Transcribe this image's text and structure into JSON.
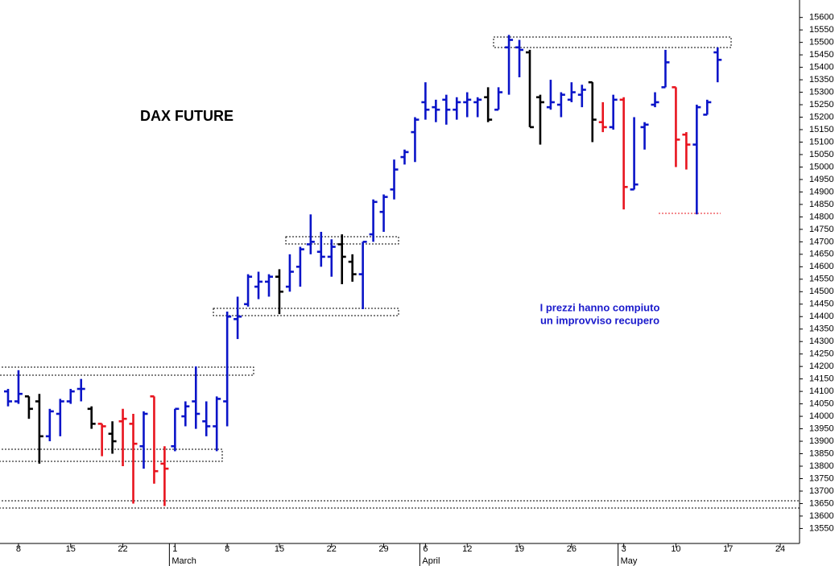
{
  "chart_data": {
    "type": "ohlc",
    "title": "DAX FUTURE",
    "annotation": [
      "I prezzi hanno compiuto",
      "un improvviso recupero"
    ],
    "categories": [
      null,
      "8",
      null,
      null,
      null,
      null,
      "15",
      null,
      null,
      null,
      null,
      "22",
      null,
      null,
      null,
      null,
      "1",
      null,
      null,
      null,
      null,
      "8",
      null,
      null,
      null,
      null,
      "15",
      null,
      null,
      null,
      null,
      "22",
      null,
      null,
      null,
      null,
      "29",
      null,
      null,
      null,
      "6",
      null,
      null,
      null,
      "12",
      null,
      null,
      null,
      null,
      "19",
      null,
      null,
      null,
      null,
      "26",
      null,
      null,
      null,
      null,
      "3",
      null,
      null,
      null,
      null,
      "10",
      null,
      null,
      null,
      null,
      "17",
      null,
      null,
      null,
      null,
      "24"
    ],
    "month_labels": [
      null,
      null,
      null,
      null,
      null,
      null,
      null,
      null,
      null,
      null,
      null,
      null,
      null,
      null,
      null,
      null,
      "March",
      null,
      null,
      null,
      null,
      null,
      null,
      null,
      null,
      null,
      null,
      null,
      null,
      null,
      null,
      null,
      null,
      null,
      null,
      null,
      null,
      null,
      null,
      null,
      "April",
      null,
      null,
      null,
      null,
      null,
      null,
      null,
      null,
      null,
      null,
      null,
      null,
      null,
      null,
      null,
      null,
      null,
      null,
      "May",
      null,
      null,
      null,
      null,
      null,
      null,
      null,
      null,
      null,
      null,
      null,
      null,
      null,
      null,
      null
    ],
    "open": [
      14100,
      14060,
      14080,
      14060,
      13920,
      14010,
      14060,
      14110,
      14030,
      13970,
      13930,
      13980,
      13970,
      13880,
      14080,
      13810,
      13880,
      14000,
      14060,
      13980,
      13960,
      14060,
      14390,
      14450,
      14520,
      14540,
      14560,
      14520,
      14600,
      14690,
      14660,
      14640,
      14690,
      14620,
      14570,
      14730,
      14820,
      14910,
      15040,
      15140,
      15260,
      15240,
      15270,
      15230,
      15260,
      15260,
      15280,
      15230,
      15480,
      15480,
      15460,
      15280,
      15240,
      15250,
      15270,
      15290,
      15340,
      15180,
      15160,
      15270,
      14910,
      15160,
      15250,
      15320,
      15320,
      15130,
      15090,
      15210,
      15460,
      null,
      null,
      null,
      null,
      null,
      null
    ],
    "high": [
      14110,
      14185,
      14080,
      14090,
      14030,
      14070,
      14110,
      14150,
      14040,
      13970,
      13980,
      14030,
      14010,
      14020,
      14080,
      13880,
      14030,
      14060,
      14200,
      14060,
      14080,
      14420,
      14480,
      14570,
      14580,
      14570,
      14590,
      14650,
      14680,
      14810,
      14740,
      14710,
      14730,
      14650,
      14700,
      14870,
      14890,
      15030,
      15070,
      15200,
      15340,
      15270,
      15290,
      15280,
      15300,
      15280,
      15320,
      15320,
      15530,
      15510,
      15470,
      15290,
      15350,
      15300,
      15340,
      15330,
      15340,
      15260,
      15290,
      15280,
      15200,
      15180,
      15300,
      15470,
      15320,
      15140,
      15250,
      15270,
      15480,
      null,
      null,
      null,
      null,
      null,
      null
    ],
    "low": [
      14040,
      14050,
      13990,
      13810,
      13900,
      13920,
      14050,
      14060,
      13950,
      13840,
      13850,
      13800,
      13650,
      13790,
      13730,
      13640,
      13860,
      13960,
      13950,
      13920,
      13860,
      13960,
      14310,
      14440,
      14470,
      14480,
      14410,
      14500,
      14520,
      14650,
      14600,
      14560,
      14530,
      14540,
      14430,
      14700,
      14740,
      14870,
      15010,
      15020,
      15190,
      15180,
      15170,
      15190,
      15200,
      15200,
      15180,
      15230,
      15290,
      15360,
      15160,
      15090,
      15230,
      15200,
      15260,
      15240,
      15100,
      15140,
      15150,
      14830,
      14910,
      15070,
      15240,
      15320,
      15000,
      14990,
      14810,
      15210,
      15340,
      null,
      null,
      null,
      null,
      null,
      null
    ],
    "close": [
      14060,
      14090,
      14030,
      13920,
      14020,
      14060,
      14100,
      14110,
      13970,
      13960,
      13900,
      13990,
      13890,
      14010,
      13780,
      13790,
      14030,
      14040,
      14010,
      13960,
      14070,
      14400,
      14400,
      14560,
      14540,
      14560,
      14500,
      14580,
      14670,
      14700,
      14640,
      14680,
      14640,
      14570,
      14700,
      14860,
      14880,
      14990,
      15060,
      15190,
      15230,
      15230,
      15230,
      15260,
      15270,
      15270,
      15190,
      15300,
      15510,
      15470,
      15160,
      15260,
      15260,
      15290,
      15300,
      15310,
      15190,
      15160,
      15270,
      14920,
      14930,
      15170,
      15260,
      15420,
      15110,
      15090,
      15240,
      15260,
      15430,
      null,
      null,
      null,
      null,
      null,
      null
    ],
    "colors": [
      "#0a14c8",
      "#0a14c8",
      "#000000",
      "#000000",
      "#0a14c8",
      "#0a14c8",
      "#0a14c8",
      "#0a14c8",
      "#000000",
      "#e8141e",
      "#000000",
      "#e8141e",
      "#e8141e",
      "#0a14c8",
      "#e8141e",
      "#e8141e",
      "#0a14c8",
      "#0a14c8",
      "#0a14c8",
      "#0a14c8",
      "#0a14c8",
      "#0a14c8",
      "#0a14c8",
      "#0a14c8",
      "#0a14c8",
      "#0a14c8",
      "#000000",
      "#0a14c8",
      "#0a14c8",
      "#0a14c8",
      "#0a14c8",
      "#0a14c8",
      "#000000",
      "#000000",
      "#0a14c8",
      "#0a14c8",
      "#0a14c8",
      "#0a14c8",
      "#0a14c8",
      "#0a14c8",
      "#0a14c8",
      "#0a14c8",
      "#0a14c8",
      "#0a14c8",
      "#0a14c8",
      "#0a14c8",
      "#000000",
      "#0a14c8",
      "#0a14c8",
      "#0a14c8",
      "#000000",
      "#000000",
      "#0a14c8",
      "#0a14c8",
      "#0a14c8",
      "#0a14c8",
      "#000000",
      "#e8141e",
      "#0a14c8",
      "#e8141e",
      "#0a14c8",
      "#0a14c8",
      "#0a14c8",
      "#0a14c8",
      "#e8141e",
      "#e8141e",
      "#0a14c8",
      "#0a14c8",
      "#0a14c8",
      null,
      null,
      null,
      null,
      null,
      null
    ],
    "ylim": [
      13490,
      15670
    ],
    "yticks": [
      13550,
      13600,
      13650,
      13700,
      13750,
      13800,
      13850,
      13900,
      13950,
      14000,
      14050,
      14100,
      14150,
      14200,
      14250,
      14300,
      14350,
      14400,
      14450,
      14500,
      14550,
      14600,
      14650,
      14700,
      14750,
      14800,
      14850,
      14900,
      14950,
      15000,
      15050,
      15100,
      15150,
      15200,
      15250,
      15300,
      15350,
      15400,
      15450,
      15500,
      15550,
      15600
    ]
  }
}
